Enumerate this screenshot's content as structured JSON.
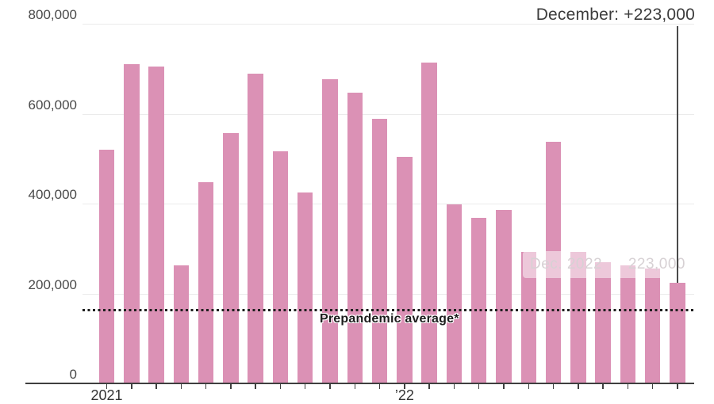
{
  "chart_data": {
    "type": "bar",
    "description": "Monthly change in jobs, Jan 2021 through Dec 2022",
    "x": [
      "2021-01",
      "2021-02",
      "2021-03",
      "2021-04",
      "2021-05",
      "2021-06",
      "2021-07",
      "2021-08",
      "2021-09",
      "2021-10",
      "2021-11",
      "2021-12",
      "2022-01",
      "2022-02",
      "2022-03",
      "2022-04",
      "2022-05",
      "2022-06",
      "2022-07",
      "2022-08",
      "2022-09",
      "2022-10",
      "2022-11",
      "2022-12"
    ],
    "values": [
      520000,
      710000,
      704000,
      263000,
      447000,
      557000,
      689000,
      517000,
      424000,
      677000,
      647000,
      588000,
      504000,
      714000,
      398000,
      368000,
      386000,
      293000,
      537000,
      292000,
      269000,
      263000,
      256000,
      223000
    ],
    "ylim": [
      0,
      800000
    ],
    "y_ticks": [
      {
        "value": 0,
        "label": "0"
      },
      {
        "value": 200000,
        "label": "200,000"
      },
      {
        "value": 400000,
        "label": "400,000"
      },
      {
        "value": 600000,
        "label": "600,000"
      },
      {
        "value": 800000,
        "label": "800,000"
      }
    ],
    "x_axis_labels": [
      {
        "text": "2021",
        "month_index": 0
      },
      {
        "text": "’22",
        "month_index": 12
      }
    ],
    "reference_line": {
      "value": 163000,
      "label": "Prepandemic average*"
    },
    "annotation": {
      "text": "December: +223,000",
      "month_index": 23,
      "value": 223000
    },
    "ghost_tooltip": {
      "label": "Dec. 2022",
      "value": "223,000"
    },
    "grid": true,
    "legend": false,
    "colors": {
      "bar": "#db91b5",
      "grid": "#ebebeb",
      "axis": "#3f3f3f",
      "dotted_line": "#1f1f1f",
      "tick_text": "#4a4a4a",
      "callout_text": "#3c3c3c",
      "ghost_text": "#d7d1d4"
    }
  }
}
